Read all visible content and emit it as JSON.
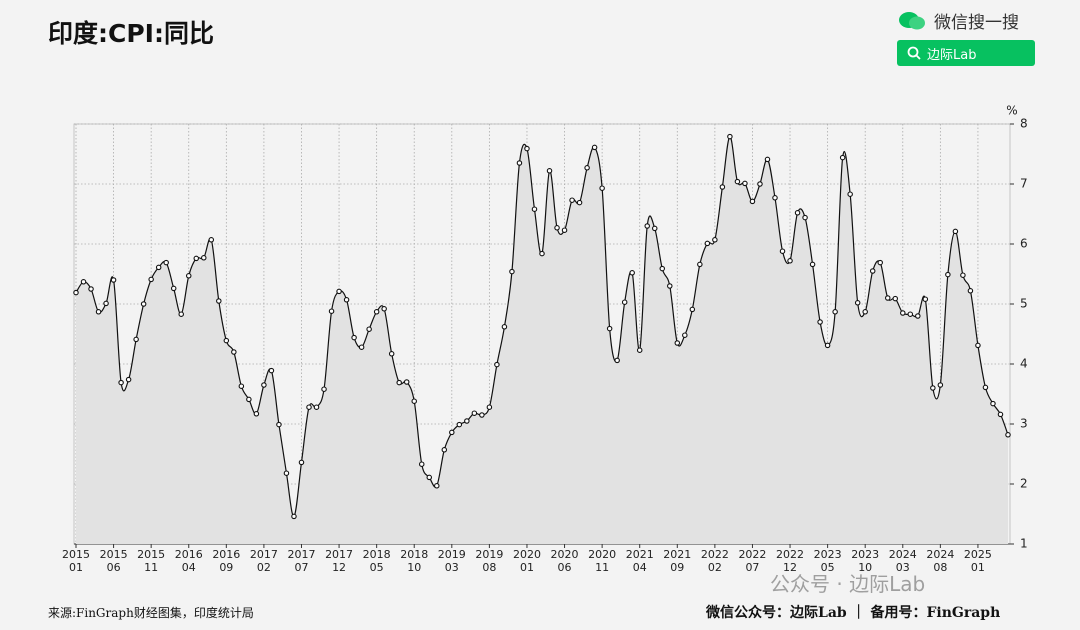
{
  "header": {
    "title": "印度:CPI:同比",
    "search_brand": "微信搜一搜",
    "search_button": "边际Lab"
  },
  "footer": {
    "source": "来源:FinGraph财经图集，印度统计局",
    "credit": "微信公众号：边际Lab ｜ 备用号：FinGraph",
    "watermark": "公众号 · 边际Lab"
  },
  "chart_data": {
    "type": "line",
    "y_unit": "%",
    "color": "#111111",
    "fill": "#e2e2e2",
    "grid": true,
    "ylim": [
      1,
      8
    ],
    "yticks": [
      1,
      2,
      3,
      4,
      5,
      6,
      7,
      8
    ],
    "categories": [
      "2015\n01",
      null,
      null,
      null,
      null,
      "2015\n06",
      null,
      null,
      null,
      null,
      "2015\n11",
      null,
      null,
      null,
      null,
      "2016\n04",
      null,
      null,
      null,
      null,
      "2016\n09",
      null,
      null,
      null,
      null,
      "2017\n02",
      null,
      null,
      null,
      null,
      "2017\n07",
      null,
      null,
      null,
      null,
      "2017\n12",
      null,
      null,
      null,
      null,
      "2018\n05",
      null,
      null,
      null,
      null,
      "2018\n10",
      null,
      null,
      null,
      null,
      "2019\n03",
      null,
      null,
      null,
      null,
      "2019\n08",
      null,
      null,
      null,
      null,
      "2020\n01",
      null,
      null,
      null,
      null,
      "2020\n06",
      null,
      null,
      null,
      null,
      "2020\n11",
      null,
      null,
      null,
      null,
      "2021\n04",
      null,
      null,
      null,
      null,
      "2021\n09",
      null,
      null,
      null,
      null,
      "2022\n02",
      null,
      null,
      null,
      null,
      "2022\n07",
      null,
      null,
      null,
      null,
      "2022\n12",
      null,
      null,
      null,
      null,
      "2023\n05",
      null,
      null,
      null,
      null,
      "2023\n10",
      null,
      null,
      null,
      null,
      "2024\n03",
      null,
      null,
      null,
      null,
      "2024\n08",
      null,
      null,
      null,
      null,
      "2025\n01",
      null,
      null,
      null,
      null
    ],
    "values": [
      5.19,
      5.37,
      5.25,
      4.87,
      5.01,
      5.4,
      3.69,
      3.74,
      4.41,
      5.0,
      5.41,
      5.61,
      5.69,
      5.26,
      4.83,
      5.47,
      5.76,
      5.77,
      6.07,
      5.05,
      4.39,
      4.2,
      3.63,
      3.41,
      3.17,
      3.65,
      3.89,
      2.99,
      2.18,
      1.46,
      2.36,
      3.28,
      3.28,
      3.58,
      4.88,
      5.21,
      5.07,
      4.44,
      4.28,
      4.58,
      4.87,
      4.92,
      4.17,
      3.69,
      3.7,
      3.38,
      2.33,
      2.11,
      1.97,
      2.57,
      2.86,
      2.99,
      3.05,
      3.18,
      3.15,
      3.28,
      3.99,
      4.62,
      5.54,
      7.35,
      7.59,
      6.58,
      5.84,
      7.22,
      6.27,
      6.23,
      6.73,
      6.69,
      7.27,
      7.61,
      6.93,
      4.59,
      4.06,
      5.03,
      5.52,
      4.23,
      6.3,
      6.26,
      5.59,
      5.3,
      4.35,
      4.48,
      4.91,
      5.66,
      6.01,
      6.07,
      6.95,
      7.79,
      7.04,
      7.01,
      6.71,
      7.0,
      7.41,
      6.77,
      5.88,
      5.72,
      6.52,
      6.44,
      5.66,
      4.7,
      4.31,
      4.87,
      7.44,
      6.83,
      5.02,
      4.87,
      5.55,
      5.69,
      5.1,
      5.09,
      4.85,
      4.83,
      4.8,
      5.08,
      3.6,
      3.65,
      5.49,
      6.21,
      5.48,
      5.22,
      4.31,
      3.61,
      3.34,
      3.16,
      2.82
    ]
  }
}
